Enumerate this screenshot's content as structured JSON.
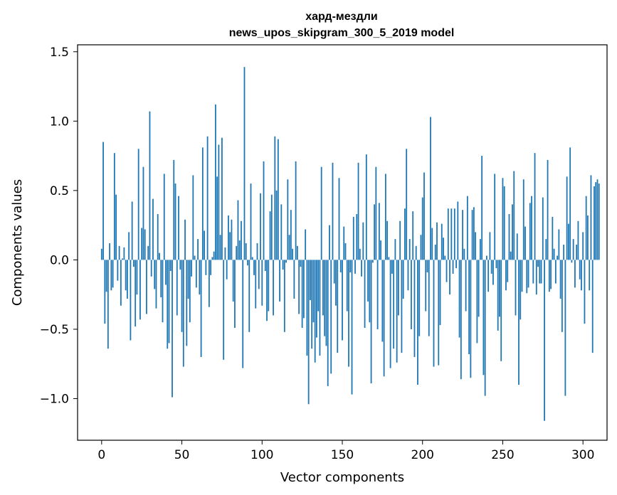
{
  "chart_data": {
    "type": "bar",
    "title_line1": "хард-мездли",
    "title_line2": "news_upos_skipgram_300_5_2019 model",
    "xlabel": "Vector components",
    "ylabel": "Components values",
    "xlim": [
      -15,
      315
    ],
    "ylim": [
      -1.3,
      1.55
    ],
    "x_ticks": [
      0,
      50,
      100,
      150,
      200,
      250,
      300
    ],
    "x_tick_labels": [
      "0",
      "50",
      "100",
      "150",
      "200",
      "250",
      "300"
    ],
    "y_ticks": [
      -1.0,
      -0.5,
      0.0,
      0.5,
      1.0,
      1.5
    ],
    "y_tick_labels": [
      "−1.0",
      "−0.5",
      "0.0",
      "0.5",
      "1.0",
      "1.5"
    ],
    "bar_color": "#1f77b4",
    "values": [
      0.08,
      0.85,
      -0.46,
      -0.23,
      -0.64,
      0.12,
      -0.22,
      -0.2,
      0.77,
      0.47,
      -0.15,
      0.1,
      -0.33,
      0.01,
      0.09,
      -0.22,
      -0.28,
      0.2,
      -0.58,
      0.42,
      -0.05,
      -0.48,
      -0.25,
      0.8,
      -0.43,
      0.23,
      0.67,
      0.22,
      -0.39,
      0.1,
      1.07,
      -0.12,
      0.44,
      -0.21,
      -0.35,
      0.33,
      0.05,
      -0.27,
      -0.45,
      0.62,
      -0.18,
      -0.64,
      -0.6,
      -0.08,
      -0.99,
      0.72,
      0.55,
      -0.4,
      0.46,
      -0.07,
      -0.52,
      -0.77,
      0.29,
      -0.62,
      -0.28,
      -0.45,
      -0.12,
      0.61,
      0.03,
      -0.2,
      0.15,
      -0.25,
      -0.7,
      0.81,
      0.21,
      -0.11,
      0.89,
      -0.34,
      -0.11,
      0.02,
      0.06,
      1.12,
      0.6,
      0.83,
      0.18,
      0.88,
      -0.72,
      0.09,
      -0.14,
      0.32,
      0.2,
      0.29,
      -0.3,
      -0.49,
      0.1,
      0.43,
      0.14,
      0.28,
      -0.78,
      1.39,
      0.12,
      -0.04,
      -0.52,
      0.55,
      0.02,
      -0.11,
      -0.35,
      0.12,
      -0.21,
      0.48,
      -0.33,
      0.71,
      -0.08,
      -0.44,
      -0.37,
      0.35,
      0.47,
      -0.4,
      0.89,
      0.5,
      0.87,
      -0.3,
      0.4,
      -0.07,
      -0.52,
      -0.02,
      0.58,
      0.18,
      0.36,
      0.08,
      -0.28,
      0.71,
      0.1,
      -0.39,
      -0.05,
      -0.49,
      -0.42,
      0.22,
      -0.69,
      -1.04,
      -0.29,
      -0.64,
      -0.45,
      -0.74,
      -0.56,
      -0.37,
      -0.69,
      0.67,
      -0.4,
      -0.55,
      -0.62,
      -0.91,
      0.25,
      -0.82,
      0.7,
      -0.17,
      -0.33,
      -0.67,
      0.59,
      -0.09,
      -0.58,
      0.24,
      0.12,
      -0.37,
      -0.77,
      -0.09,
      -0.97,
      0.31,
      -0.1,
      0.33,
      0.7,
      0.08,
      -0.12,
      0.27,
      -0.49,
      0.76,
      -0.3,
      -0.45,
      -0.89,
      -0.02,
      0.4,
      0.67,
      -0.5,
      0.41,
      0.14,
      -0.59,
      -0.84,
      0.62,
      0.28,
      0.02,
      -0.78,
      -0.1,
      -0.64,
      0.15,
      -0.74,
      -0.4,
      0.28,
      -0.67,
      -0.28,
      0.37,
      0.8,
      -0.22,
      0.15,
      -0.5,
      0.35,
      -0.7,
      0.1,
      -0.9,
      -0.55,
      0.18,
      0.45,
      0.63,
      -0.37,
      -0.09,
      -0.55,
      1.03,
      0.23,
      -0.77,
      0.11,
      0.27,
      -0.76,
      -0.47,
      0.26,
      0.16,
      0.03,
      -0.16,
      0.37,
      -0.25,
      0.37,
      -0.1,
      0.37,
      -0.06,
      0.42,
      -0.56,
      -0.86,
      0.36,
      0.08,
      -0.37,
      0.46,
      -0.68,
      -0.85,
      0.36,
      0.38,
      0.2,
      -0.6,
      -0.41,
      0.15,
      0.75,
      -0.83,
      -0.98,
      0.03,
      -0.23,
      0.2,
      -0.1,
      -0.18,
      0.62,
      -0.06,
      -0.51,
      -0.41,
      -0.73,
      0.59,
      0.53,
      -0.22,
      -0.16,
      0.33,
      0.06,
      0.4,
      0.64,
      -0.4,
      0.19,
      -0.9,
      -0.43,
      -0.23,
      0.58,
      0.24,
      -0.24,
      -0.2,
      0.41,
      0.46,
      -0.17,
      0.77,
      -0.25,
      -0.05,
      -0.17,
      -0.17,
      0.45,
      -1.16,
      0.15,
      0.72,
      -0.23,
      -0.21,
      0.31,
      0.08,
      -0.17,
      0.03,
      0.22,
      -0.28,
      -0.52,
      0.11,
      -0.98,
      0.6,
      0.26,
      0.81,
      -0.02,
      0.15,
      -0.2,
      0.11,
      0.28,
      -0.14,
      -0.22,
      0.2,
      -0.46,
      0.46,
      0.32,
      -0.22,
      0.61,
      -0.67,
      0.53,
      0.56,
      0.58,
      0.55
    ]
  }
}
